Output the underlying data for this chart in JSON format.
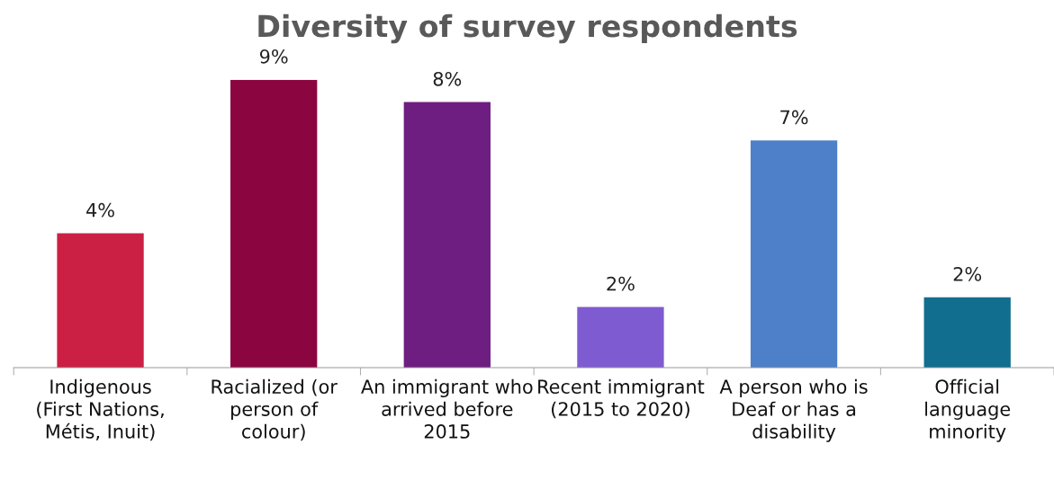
{
  "chart_data": {
    "type": "bar",
    "title": "Diversity of survey respondents",
    "categories": [
      "Indigenous (First Nations, Métis, Inuit)",
      "Racialized (or person of colour)",
      "An immigrant who arrived before 2015",
      "Recent immigrant (2015 to 2020)",
      "A person who is Deaf or has a disability",
      "Official language minority"
    ],
    "values": [
      4.2,
      9.0,
      8.3,
      1.9,
      7.1,
      2.2
    ],
    "value_labels": [
      "4%",
      "9%",
      "8%",
      "2%",
      "7%",
      "2%"
    ],
    "colors": [
      "#cc1f44",
      "#8b0640",
      "#6e1e80",
      "#7f5bd1",
      "#4d80c9",
      "#126e8f"
    ],
    "grid": false,
    "legend": false
  }
}
